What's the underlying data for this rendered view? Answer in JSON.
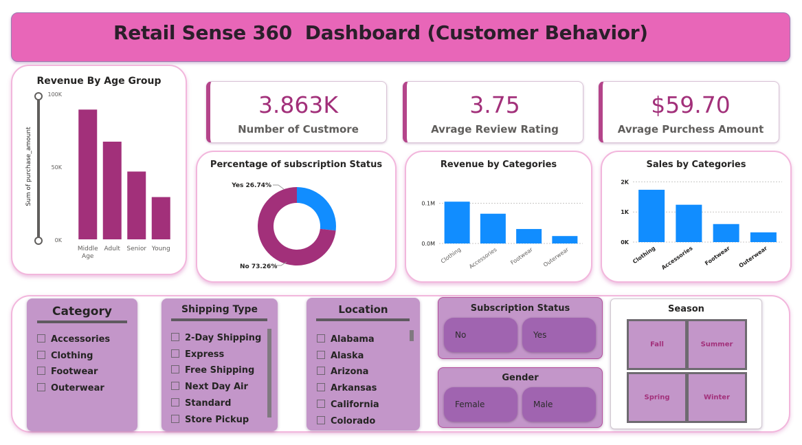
{
  "header": {
    "title": "Retail Sense 360  Dashboard (Customer Behavior)"
  },
  "colors": {
    "header_bg": "#e866b8",
    "bar_purple": "#a2307a",
    "bar_blue": "#118dff",
    "donut_yes": "#118dff",
    "donut_no": "#a2307a",
    "slicer_bg": "#c396c9",
    "tile_bg": "#a064b0"
  },
  "kpis": [
    {
      "value": "3.863K",
      "label": "Number of Custmore"
    },
    {
      "value": "3.75",
      "label": "Avrage Review Rating"
    },
    {
      "value": "$59.70",
      "label": "Avrage Purchess Amount"
    }
  ],
  "chart_data": [
    {
      "id": "revenue_by_age",
      "type": "bar",
      "title": "Revenue By Age Group",
      "xlabel": "",
      "ylabel": "Sum of purchase_amount",
      "categories": [
        "Middle Age",
        "Adult",
        "Senior",
        "Young"
      ],
      "values": [
        89000,
        67000,
        46500,
        29000
      ],
      "ylim": [
        0,
        100000
      ],
      "ticks": [
        {
          "v": 0,
          "label": "0K"
        },
        {
          "v": 50000,
          "label": "50K"
        },
        {
          "v": 100000,
          "label": "100K"
        }
      ],
      "grid": false
    },
    {
      "id": "subscription_status",
      "type": "pie",
      "title": "Percentage of subscription Status",
      "donut": true,
      "slices": [
        {
          "name": "Yes",
          "value": 26.74,
          "label": "Yes 26.74%"
        },
        {
          "name": "No",
          "value": 73.26,
          "label": "No 73.26%"
        }
      ]
    },
    {
      "id": "revenue_by_categories",
      "type": "bar",
      "title": "Revenue by Categories",
      "categories": [
        "Clothing",
        "Accessories",
        "Footwear",
        "Outerwear"
      ],
      "values": [
        104000,
        74000,
        36000,
        18500
      ],
      "ylim": [
        0,
        130000
      ],
      "ticks": [
        {
          "v": 0,
          "label": "0.0M"
        },
        {
          "v": 100000,
          "label": "0.1M"
        }
      ],
      "grid": true
    },
    {
      "id": "sales_by_categories",
      "type": "bar",
      "title": "Sales by Categories",
      "categories": [
        "Clothing",
        "Accessories",
        "Footwear",
        "Outerwear"
      ],
      "values": [
        1737,
        1240,
        599,
        324
      ],
      "ylim": [
        0,
        2100
      ],
      "ticks": [
        {
          "v": 0,
          "label": "0K"
        },
        {
          "v": 1000,
          "label": "1K"
        },
        {
          "v": 2000,
          "label": "2K"
        }
      ],
      "grid": true
    }
  ],
  "slicers": {
    "category": {
      "title": "Category",
      "options": [
        "Accessories",
        "Clothing",
        "Footwear",
        "Outerwear"
      ]
    },
    "shipping": {
      "title": "Shipping Type",
      "options": [
        "2-Day Shipping",
        "Express",
        "Free Shipping",
        "Next Day Air",
        "Standard",
        "Store Pickup"
      ]
    },
    "location": {
      "title": "Location",
      "options": [
        "Alabama",
        "Alaska",
        "Arizona",
        "Arkansas",
        "California",
        "Colorado"
      ]
    },
    "subscription": {
      "title": "Subscription Status",
      "options": [
        "No",
        "Yes"
      ]
    },
    "gender": {
      "title": "Gender",
      "options": [
        "Female",
        "Male"
      ]
    },
    "season": {
      "title": "Season",
      "options": [
        "Fall",
        "Summer",
        "Spring",
        "Winter"
      ]
    }
  }
}
